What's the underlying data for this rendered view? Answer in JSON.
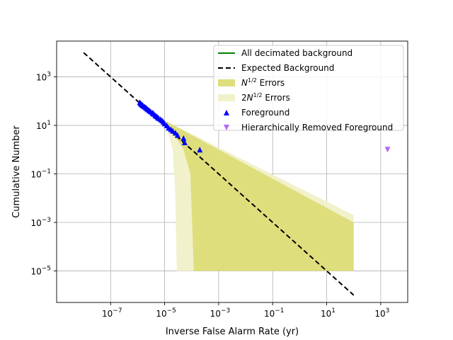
{
  "chart_data": {
    "type": "scatter",
    "xlabel": "Inverse False Alarm Rate (yr)",
    "ylabel": "Cumulative Number",
    "x_scale": "log",
    "y_scale": "log",
    "xlim": [
      1e-09,
      10000
    ],
    "ylim": [
      5e-07,
      30000
    ],
    "grid": true,
    "legend_position": "top-right",
    "x_ticks": [
      {
        "value": 1e-07,
        "base": "10",
        "exp": "−7"
      },
      {
        "value": 1e-05,
        "base": "10",
        "exp": "−5"
      },
      {
        "value": 0.001,
        "base": "10",
        "exp": "−3"
      },
      {
        "value": 0.1,
        "base": "10",
        "exp": "−1"
      },
      {
        "value": 10,
        "base": "10",
        "exp": "1"
      },
      {
        "value": 1000,
        "base": "10",
        "exp": "3"
      }
    ],
    "y_ticks": [
      {
        "value": 1e-05,
        "base": "10",
        "exp": "−5"
      },
      {
        "value": 0.001,
        "base": "10",
        "exp": "−3"
      },
      {
        "value": 0.1,
        "base": "10",
        "exp": "−1"
      },
      {
        "value": 10,
        "base": "10",
        "exp": "1"
      },
      {
        "value": 1000,
        "base": "10",
        "exp": "3"
      }
    ],
    "legend": [
      {
        "label": "All decimated background",
        "kind": "line",
        "color": "#008000"
      },
      {
        "label": "Expected Background",
        "kind": "dashed",
        "color": "#000000"
      },
      {
        "label_parts": [
          "N",
          "1/2",
          " Errors"
        ],
        "kind": "patch",
        "color": "#dede7c"
      },
      {
        "label_parts": [
          "2N",
          "1/2",
          " Errors"
        ],
        "kind": "patch",
        "color": "#f1f1cc"
      },
      {
        "label": "Foreground",
        "kind": "marker-up",
        "color": "#0000ff"
      },
      {
        "label": "Hierarchically Removed Foreground",
        "kind": "marker-down",
        "color": "#b266ff"
      }
    ],
    "series": [
      {
        "kind": "expected-line",
        "color": "#000000",
        "x": [
          1e-08,
          100
        ],
        "y": [
          10000,
          1e-06
        ]
      },
      {
        "kind": "band-2sigma",
        "color": "#f1f1cc",
        "upper": [
          [
            1e-05,
            16
          ],
          [
            100,
            0.002
          ]
        ],
        "lower": [
          [
            1e-05,
            16
          ],
          [
            2e-05,
            1
          ],
          [
            2.5e-05,
            0.01
          ],
          [
            2.8e-05,
            1e-05
          ],
          [
            100,
            1e-05
          ]
        ]
      },
      {
        "kind": "band-1sigma",
        "color": "#dede7c",
        "upper": [
          [
            1e-05,
            16
          ],
          [
            100,
            0.001
          ]
        ],
        "lower": [
          [
            1e-05,
            16
          ],
          [
            5e-05,
            1
          ],
          [
            9e-05,
            0.1
          ],
          [
            0.00012,
            1e-05
          ],
          [
            100,
            1e-05
          ]
        ]
      },
      {
        "name": "Foreground",
        "kind": "triangle-up",
        "color": "#0000ff",
        "points": [
          [
            1.2e-06,
            90
          ],
          [
            1.3e-06,
            80
          ],
          [
            1.4e-06,
            75
          ],
          [
            1.5e-06,
            70
          ],
          [
            1.6e-06,
            65
          ],
          [
            1.8e-06,
            60
          ],
          [
            2e-06,
            55
          ],
          [
            2.2e-06,
            50
          ],
          [
            2.4e-06,
            46
          ],
          [
            2.7e-06,
            42
          ],
          [
            3e-06,
            38
          ],
          [
            3.5e-06,
            34
          ],
          [
            3.7e-06,
            32
          ],
          [
            4e-06,
            30
          ],
          [
            4.5e-06,
            26
          ],
          [
            5e-06,
            24
          ],
          [
            5.5e-06,
            22
          ],
          [
            6e-06,
            20
          ],
          [
            7e-06,
            18
          ],
          [
            8e-06,
            16
          ],
          [
            9e-06,
            14
          ],
          [
            1e-05,
            12
          ],
          [
            1.2e-05,
            10
          ],
          [
            1.4e-05,
            8
          ],
          [
            1.7e-05,
            7
          ],
          [
            2e-05,
            6
          ],
          [
            2.5e-05,
            5
          ],
          [
            3e-05,
            4
          ],
          [
            5e-05,
            3
          ],
          [
            5.5e-05,
            2
          ],
          [
            0.0002,
            1
          ]
        ]
      },
      {
        "name": "Hierarchically Removed Foreground",
        "kind": "triangle-down",
        "color": "#b266ff",
        "points": [
          [
            1800,
            1
          ]
        ]
      }
    ]
  }
}
